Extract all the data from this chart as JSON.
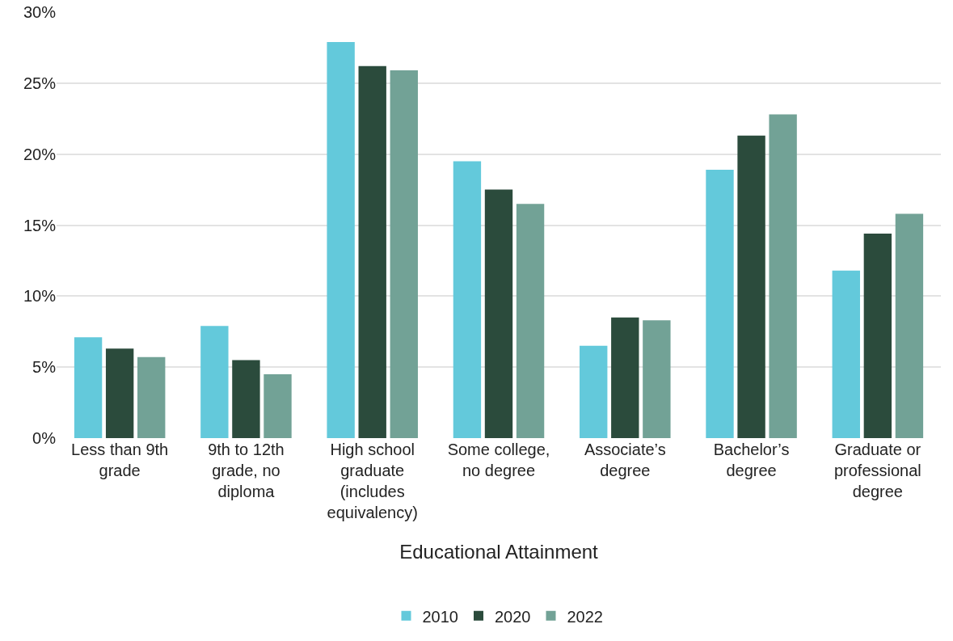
{
  "chart_data": {
    "type": "bar",
    "xlabel": "Educational Attainment",
    "categories": [
      "Less than 9th grade",
      "9th to 12th grade, no diploma",
      "High school graduate (includes equivalency)",
      "Some college, no degree",
      "Associate’s degree",
      "Bachelor’s degree",
      "Graduate or professional degree"
    ],
    "series": [
      {
        "name": "2010",
        "color": "#63c9db",
        "values": [
          7.1,
          7.9,
          27.9,
          19.5,
          6.5,
          18.9,
          11.8
        ]
      },
      {
        "name": "2020",
        "color": "#2b4b3c",
        "values": [
          6.3,
          5.5,
          26.2,
          17.5,
          8.5,
          21.3,
          14.4
        ]
      },
      {
        "name": "2022",
        "color": "#72a296",
        "values": [
          5.7,
          4.5,
          25.9,
          16.5,
          8.3,
          22.8,
          15.8
        ]
      }
    ],
    "ylim": [
      0,
      30
    ],
    "yticks": [
      {
        "value": 0,
        "label": "0%"
      },
      {
        "value": 5,
        "label": "5%"
      },
      {
        "value": 10,
        "label": "10%"
      },
      {
        "value": 15,
        "label": "15%"
      },
      {
        "value": 20,
        "label": "20%"
      },
      {
        "value": 25,
        "label": "25%"
      },
      {
        "value": 30,
        "label": "30%"
      }
    ],
    "grid": "y",
    "legend": "bottom"
  }
}
